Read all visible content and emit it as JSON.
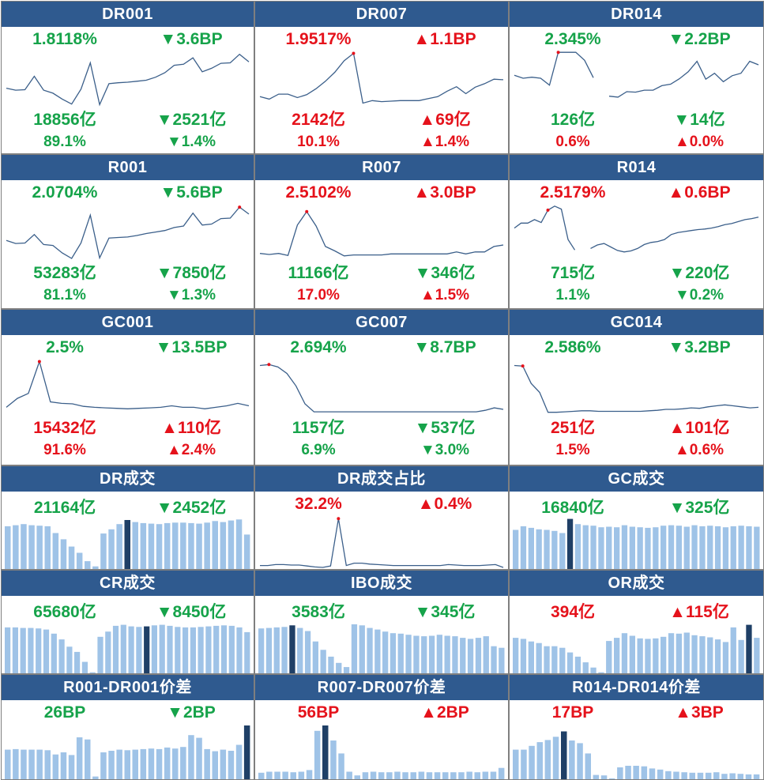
{
  "colors": {
    "up": "#e5121b",
    "down": "#16a34a",
    "header": "#2f5a8f",
    "line": "#3b5f8a",
    "bar": "#9fc3e7",
    "bar_highlight": "#1f3f66"
  },
  "panels": [
    {
      "title": "DR001",
      "type": "line",
      "rate": "1.8118%",
      "rate_chg": "▼3.6BP",
      "vol": "18856亿",
      "vol_chg": "▼2521亿",
      "pct": "89.1%",
      "pct_chg": "▼1.4%",
      "dir": [
        "down",
        "down",
        "down"
      ]
    },
    {
      "title": "DR007",
      "type": "line",
      "rate": "1.9517%",
      "rate_chg": "▲1.1BP",
      "vol": "2142亿",
      "vol_chg": "▲69亿",
      "pct": "10.1%",
      "pct_chg": "▲1.4%",
      "dir": [
        "up",
        "up",
        "up"
      ]
    },
    {
      "title": "DR014",
      "type": "line",
      "rate": "2.345%",
      "rate_chg": "▼2.2BP",
      "vol": "126亿",
      "vol_chg": "▼14亿",
      "pct": "0.6%",
      "pct_chg": "▲0.0%",
      "dir": [
        "down",
        "down",
        "up"
      ]
    },
    {
      "title": "R001",
      "type": "line",
      "rate": "2.0704%",
      "rate_chg": "▼5.6BP",
      "vol": "53283亿",
      "vol_chg": "▼7850亿",
      "pct": "81.1%",
      "pct_chg": "▼1.3%",
      "dir": [
        "down",
        "down",
        "down"
      ]
    },
    {
      "title": "R007",
      "type": "line",
      "rate": "2.5102%",
      "rate_chg": "▲3.0BP",
      "vol": "11166亿",
      "vol_chg": "▼346亿",
      "pct": "17.0%",
      "pct_chg": "▲1.5%",
      "dir": [
        "up",
        "down",
        "up"
      ]
    },
    {
      "title": "R014",
      "type": "line",
      "rate": "2.5179%",
      "rate_chg": "▲0.6BP",
      "vol": "715亿",
      "vol_chg": "▼220亿",
      "pct": "1.1%",
      "pct_chg": "▼0.2%",
      "dir": [
        "up",
        "down",
        "down"
      ]
    },
    {
      "title": "GC001",
      "type": "line",
      "rate": "2.5%",
      "rate_chg": "▼13.5BP",
      "vol": "15432亿",
      "vol_chg": "▲110亿",
      "pct": "91.6%",
      "pct_chg": "▲2.4%",
      "dir": [
        "down",
        "up",
        "up"
      ]
    },
    {
      "title": "GC007",
      "type": "line",
      "rate": "2.694%",
      "rate_chg": "▼8.7BP",
      "vol": "1157亿",
      "vol_chg": "▼537亿",
      "pct": "6.9%",
      "pct_chg": "▼3.0%",
      "dir": [
        "down",
        "down",
        "down"
      ]
    },
    {
      "title": "GC014",
      "type": "line",
      "rate": "2.586%",
      "rate_chg": "▼3.2BP",
      "vol": "251亿",
      "vol_chg": "▲101亿",
      "pct": "1.5%",
      "pct_chg": "▲0.6%",
      "dir": [
        "down",
        "up",
        "up"
      ]
    },
    {
      "title": "DR成交",
      "type": "bar",
      "rate": "21164亿",
      "rate_chg": "▼2452亿",
      "dir": [
        "down"
      ]
    },
    {
      "title": "DR成交占比",
      "type": "line",
      "rate": "32.2%",
      "rate_chg": "▲0.4%",
      "dir": [
        "up"
      ]
    },
    {
      "title": "GC成交",
      "type": "bar",
      "rate": "16840亿",
      "rate_chg": "▼325亿",
      "dir": [
        "down"
      ]
    },
    {
      "title": "CR成交",
      "type": "bar",
      "rate": "65680亿",
      "rate_chg": "▼8450亿",
      "dir": [
        "down"
      ]
    },
    {
      "title": "IBO成交",
      "type": "bar",
      "rate": "3583亿",
      "rate_chg": "▼345亿",
      "dir": [
        "down"
      ]
    },
    {
      "title": "OR成交",
      "type": "bar",
      "rate": "394亿",
      "rate_chg": "▲115亿",
      "dir": [
        "up"
      ]
    },
    {
      "title": "R001-DR001价差",
      "type": "bar",
      "rate": "26BP",
      "rate_chg": "▼2BP",
      "dir": [
        "down"
      ]
    },
    {
      "title": "R007-DR007价差",
      "type": "bar",
      "rate": "56BP",
      "rate_chg": "▲2BP",
      "dir": [
        "up"
      ]
    },
    {
      "title": "R014-DR014价差",
      "type": "bar",
      "rate": "17BP",
      "rate_chg": "▲3BP",
      "dir": [
        "up"
      ]
    }
  ],
  "chart_data": [
    {
      "type": "line",
      "title": "DR001",
      "segments": [
        [
          0.66,
          0.7,
          0.69,
          0.42,
          0.7,
          0.76,
          0.88,
          0.98,
          0.68,
          0.15,
          0.99,
          0.57,
          0.55,
          0.54,
          0.52,
          0.5,
          0.44,
          0.35,
          0.2,
          0.18,
          0.05,
          0.33,
          0.26,
          0.16,
          0.15,
          -0.02,
          0.13
        ]
      ],
      "marker": [
        1,
        25
      ]
    },
    {
      "type": "line",
      "title": "DR007",
      "segments": [
        [
          0.83,
          0.88,
          0.78,
          0.78,
          0.85,
          0.79,
          0.67,
          0.52,
          0.34,
          0.11,
          -0.04,
          0.96,
          0.91,
          0.93,
          0.92,
          0.91,
          0.91,
          0.91,
          0.87,
          0.83,
          0.72,
          0.63,
          0.77,
          0.64,
          0.57,
          0.48,
          0.49
        ]
      ],
      "marker": [
        0,
        10
      ]
    },
    {
      "type": "line",
      "title": "DR014",
      "segments": [
        [
          0.4,
          0.46,
          0.44,
          0.46,
          0.6,
          -0.06,
          -0.06,
          -0.06,
          0.1,
          0.45
        ],
        [
          0.82,
          0.84,
          0.73,
          0.74,
          0.7,
          0.7,
          0.61,
          0.58,
          0.47,
          0.33,
          0.12,
          0.48,
          0.36,
          0.53,
          0.41,
          0.36,
          0.12,
          0.19
        ]
      ],
      "marker": [
        0,
        5
      ]
    },
    {
      "type": "line",
      "title": "R001",
      "segments": [
        [
          0.64,
          0.7,
          0.69,
          0.52,
          0.72,
          0.74,
          0.89,
          1.0,
          0.69,
          0.13,
          0.99,
          0.59,
          0.58,
          0.57,
          0.54,
          0.5,
          0.47,
          0.44,
          0.38,
          0.35,
          0.09,
          0.33,
          0.31,
          0.2,
          0.19,
          -0.03,
          0.11
        ]
      ],
      "marker": [
        0,
        25
      ]
    },
    {
      "type": "line",
      "title": "R007",
      "segments": [
        [
          0.9,
          0.92,
          0.9,
          0.94,
          0.33,
          0.06,
          0.35,
          0.76,
          0.85,
          0.95,
          0.93,
          0.93,
          0.93,
          0.93,
          0.91,
          0.91,
          0.91,
          0.91,
          0.91,
          0.91,
          0.91,
          0.87,
          0.91,
          0.87,
          0.87,
          0.76,
          0.73
        ]
      ],
      "marker": [
        0,
        5
      ]
    },
    {
      "type": "line",
      "title": "R014",
      "segments": [
        [
          0.39,
          0.29,
          0.29,
          0.22,
          0.28,
          0.03,
          -0.05,
          0.01,
          0.62,
          0.83
        ],
        [
          0.8,
          0.73,
          0.7,
          0.77,
          0.84,
          0.87,
          0.85,
          0.8,
          0.72,
          0.68,
          0.66,
          0.62,
          0.52,
          0.48,
          0.46,
          0.44,
          0.42,
          0.41,
          0.39,
          0.36,
          0.32,
          0.3,
          0.26,
          0.22,
          0.2,
          0.17
        ]
      ],
      "marker": [
        0,
        5
      ]
    },
    {
      "type": "line",
      "title": "GC001",
      "segments": [
        [
          0.88,
          0.7,
          0.6,
          -0.04,
          0.77,
          0.8,
          0.81,
          0.86,
          0.88,
          0.89,
          0.9,
          0.91,
          0.9,
          0.89,
          0.88,
          0.85,
          0.88,
          0.88,
          0.91,
          0.88,
          0.85,
          0.8,
          0.85
        ]
      ],
      "marker": [
        0,
        3
      ]
    },
    {
      "type": "line",
      "title": "GC007",
      "segments": [
        [
          0.04,
          0.02,
          0.07,
          0.2,
          0.45,
          0.81,
          0.97,
          0.97,
          0.97,
          0.97,
          0.97,
          0.97,
          0.97,
          0.97,
          0.97,
          0.97,
          0.97,
          0.97,
          0.97,
          0.97,
          0.97,
          0.97,
          0.97,
          0.97,
          0.97,
          0.94,
          0.89,
          0.92
        ]
      ],
      "marker": [
        0,
        1
      ]
    },
    {
      "type": "line",
      "title": "GC014",
      "segments": [
        [
          0.04,
          0.05,
          0.4,
          0.58,
          0.98,
          0.98,
          0.97,
          0.96,
          0.95,
          0.95,
          0.96,
          0.96,
          0.96,
          0.96,
          0.96,
          0.96,
          0.95,
          0.94,
          0.92,
          0.92,
          0.91,
          0.89,
          0.9,
          0.87,
          0.85,
          0.83,
          0.85,
          0.87,
          0.89,
          0.88
        ]
      ],
      "marker": [
        0,
        1
      ]
    },
    {
      "type": "bar",
      "title": "DR成交",
      "values": [
        0.82,
        0.84,
        0.86,
        0.84,
        0.83,
        0.82,
        0.69,
        0.57,
        0.43,
        0.31,
        0.15,
        0.05,
        0.68,
        0.76,
        0.86,
        0.94,
        0.9,
        0.88,
        0.87,
        0.86,
        0.88,
        0.89,
        0.89,
        0.88,
        0.87,
        0.89,
        0.92,
        0.9,
        0.93,
        0.95,
        0.66
      ],
      "highlight": [
        15
      ]
    },
    {
      "type": "line",
      "title": "DR成交占比",
      "segments": [
        [
          0.96,
          0.96,
          0.94,
          0.94,
          0.95,
          0.95,
          0.97,
          0.99,
          1.0,
          0.97,
          -0.03,
          0.96,
          0.91,
          0.91,
          0.93,
          0.94,
          0.95,
          0.96,
          0.96,
          0.96,
          0.96,
          0.96,
          0.96,
          0.96,
          0.94,
          0.95,
          0.96,
          0.96,
          0.96,
          0.95,
          0.94,
          1.0
        ]
      ],
      "marker": [
        0,
        10
      ]
    },
    {
      "type": "bar",
      "title": "GC成交",
      "values": [
        0.75,
        0.82,
        0.79,
        0.76,
        0.75,
        0.73,
        0.69,
        0.96,
        0.86,
        0.84,
        0.83,
        0.8,
        0.81,
        0.8,
        0.84,
        0.81,
        0.8,
        0.79,
        0.8,
        0.83,
        0.84,
        0.83,
        0.81,
        0.84,
        0.82,
        0.83,
        0.82,
        0.8,
        0.82,
        0.83,
        0.82,
        0.81
      ],
      "highlight": [
        7
      ]
    },
    {
      "type": "bar",
      "title": "CR成交",
      "values": [
        0.88,
        0.88,
        0.87,
        0.87,
        0.86,
        0.84,
        0.76,
        0.65,
        0.51,
        0.41,
        0.22,
        0.02,
        0.7,
        0.8,
        0.91,
        0.93,
        0.9,
        0.89,
        0.9,
        0.92,
        0.93,
        0.91,
        0.89,
        0.88,
        0.88,
        0.89,
        0.9,
        0.91,
        0.92,
        0.91,
        0.88,
        0.79
      ],
      "highlight": [
        18
      ]
    },
    {
      "type": "bar",
      "title": "IBO成交",
      "values": [
        0.86,
        0.87,
        0.88,
        0.89,
        0.92,
        0.87,
        0.81,
        0.61,
        0.45,
        0.32,
        0.2,
        0.12,
        0.94,
        0.92,
        0.87,
        0.84,
        0.8,
        0.77,
        0.76,
        0.74,
        0.72,
        0.71,
        0.72,
        0.74,
        0.72,
        0.71,
        0.68,
        0.66,
        0.68,
        0.71,
        0.52,
        0.49
      ],
      "highlight": [
        4
      ]
    },
    {
      "type": "bar",
      "title": "OR成交",
      "values": [
        0.68,
        0.66,
        0.61,
        0.58,
        0.52,
        0.52,
        0.49,
        0.4,
        0.32,
        0.21,
        0.11,
        0.02,
        0.62,
        0.68,
        0.77,
        0.72,
        0.67,
        0.66,
        0.67,
        0.7,
        0.77,
        0.76,
        0.78,
        0.73,
        0.71,
        0.69,
        0.65,
        0.6,
        0.88,
        0.64,
        0.93,
        0.68
      ],
      "highlight": [
        30
      ]
    },
    {
      "type": "bar",
      "title": "R001-DR001价差",
      "values": [
        0.55,
        0.56,
        0.55,
        0.55,
        0.55,
        0.54,
        0.46,
        0.5,
        0.45,
        0.78,
        0.74,
        0.05,
        0.5,
        0.53,
        0.55,
        0.54,
        0.55,
        0.56,
        0.57,
        0.56,
        0.59,
        0.57,
        0.6,
        0.82,
        0.77,
        0.56,
        0.52,
        0.55,
        0.53,
        0.64,
        1.0
      ],
      "highlight": [
        30
      ]
    },
    {
      "type": "bar",
      "title": "R007-DR007价差",
      "values": [
        0.12,
        0.14,
        0.14,
        0.14,
        0.13,
        0.14,
        0.17,
        0.9,
        1.0,
        0.72,
        0.48,
        0.14,
        0.07,
        0.13,
        0.14,
        0.13,
        0.13,
        0.14,
        0.13,
        0.13,
        0.14,
        0.13,
        0.13,
        0.13,
        0.13,
        0.13,
        0.14,
        0.13,
        0.14,
        0.14,
        0.21
      ],
      "highlight": [
        8
      ]
    },
    {
      "type": "bar",
      "title": "R014-DR014价差",
      "values": [
        0.55,
        0.55,
        0.62,
        0.69,
        0.73,
        0.79,
        0.89,
        0.72,
        0.67,
        0.48,
        0.08,
        0.07,
        0.0,
        0.22,
        0.25,
        0.25,
        0.24,
        0.2,
        0.18,
        0.15,
        0.14,
        0.13,
        0.12,
        0.12,
        0.12,
        0.13,
        0.1,
        0.11,
        0.1,
        0.09,
        0.09
      ],
      "highlight": [
        6
      ]
    }
  ]
}
